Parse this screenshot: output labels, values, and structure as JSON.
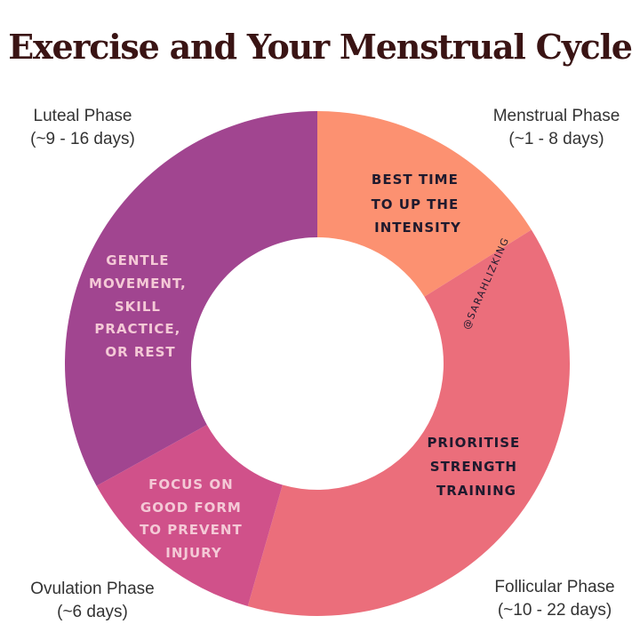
{
  "title": "Exercise and Your Menstrual Cycle",
  "watermark": "@SARAHLIZKING",
  "colors": {
    "menstrual": "#fc9171",
    "follicular": "#eb6e7b",
    "ovulation": "#d0518a",
    "luteal": "#a14590",
    "text_dark": "#1f1a2e",
    "text_light": "#f4c9d6",
    "title": "#3a1414"
  },
  "phases": [
    {
      "name": "Menstrual Phase",
      "duration": "(~1 - 8 days)",
      "advice": [
        "BEST TIME",
        "TO UP THE",
        "INTENSITY"
      ]
    },
    {
      "name": "Follicular Phase",
      "duration": "(~10 - 22 days)",
      "advice": [
        "PRIORITISE",
        "STRENGTH",
        "TRAINING"
      ]
    },
    {
      "name": "Ovulation Phase",
      "duration": "(~6 days)",
      "advice": [
        "FOCUS ON",
        "GOOD FORM",
        "TO PREVENT",
        "INJURY"
      ]
    },
    {
      "name": "Luteal Phase",
      "duration": "(~9 - 16 days)",
      "advice": [
        "GENTLE",
        "MOVEMENT,",
        "SKILL",
        "PRACTICE,",
        "OR REST"
      ]
    }
  ]
}
